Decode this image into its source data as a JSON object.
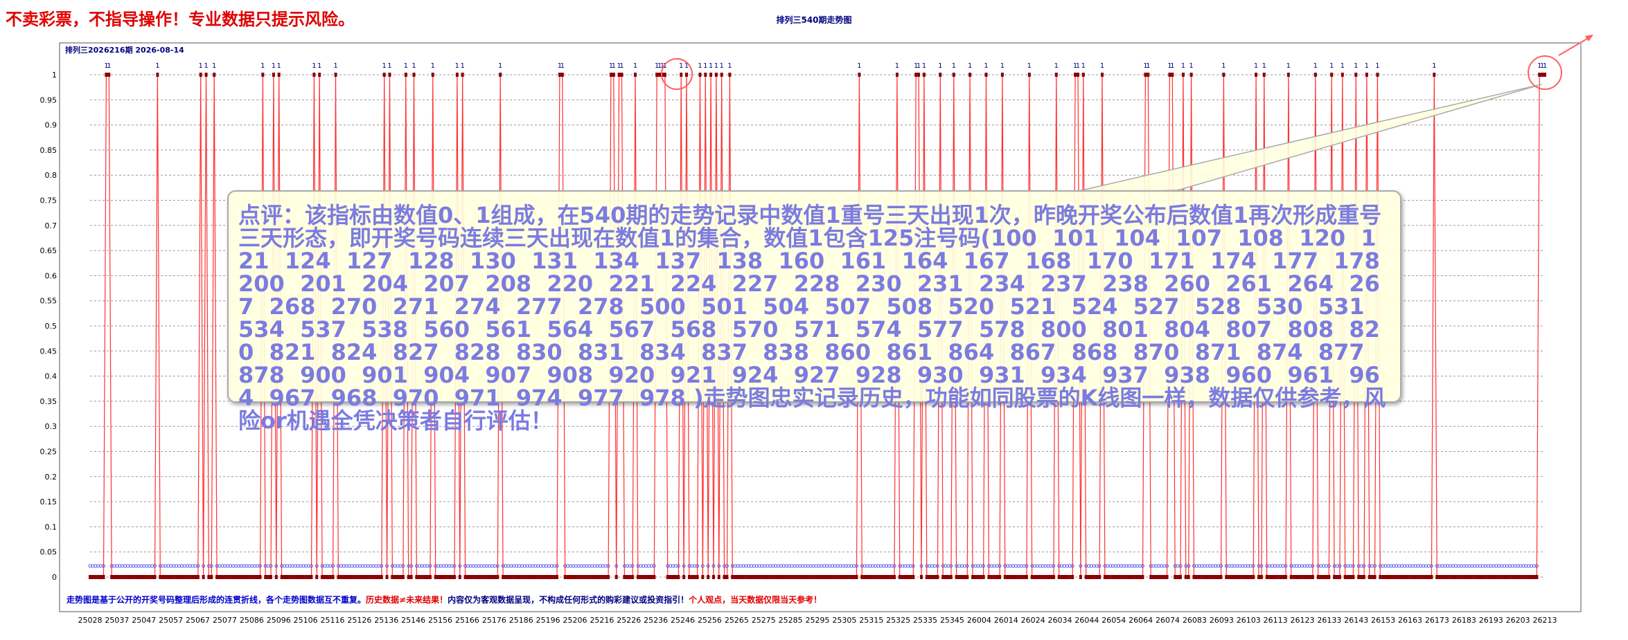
{
  "header": {
    "disclaimer": "不卖彩票，不指导操作！专业数据只提示风险。",
    "title": "排列三540期走势图",
    "period": "排列三2026216期 2026-08-14"
  },
  "footer": {
    "note_blue": "走势图是基于公开的开奖号码整理后形成的连贯折线，各个走势图数据互不重复。",
    "note_red1": "历史数据≠未来结果！",
    "note_black": "内容仅为客观数据呈现，不构成任何形式的购彩建议或投资指引！",
    "note_red2": "个人观点，当天数据仅限当天参考！"
  },
  "callout": {
    "text": "点评：该指标由数值0、1组成，在540期的走势记录中数值1重号三天出现1次，昨晚开奖公布后数值1再次形成重号三天形态，即开奖号码连续三天出现在数值1的集合，数值1包含125注号码(100  101  104  107  108  120  121  124  127  128  130  131  134  137  138  160  161  164  167  168  170  171  174  177  178  200  201  204  207  208  220  221  224  227  228  230  231  234  237  238  260  261  264  267  268  270  271  274  277  278  500  501  504  507  508  520  521  524  527  528  530  531  534  537  538  560  561  564  567  568  570  571  574  577  578  800  801  804  807  808  820  821  824  827  828  830  831  834  837  838  860  861  864  867  868  870  871  874  877  878  900  901  904  907  908  920  921  924  927  928  930  931  934  937  938  960  961  964  967  968  970  971  974  977  978 )走势图忠实记录历史，功能如同股票的K线图一样，数据仅供参考，风险or机遇全凭决策者自行评估！"
  },
  "colors": {
    "line": "#ff3030",
    "marker": "#8b0000",
    "blue_circle": "#3030e0",
    "highlight_circle": "#ff6060",
    "grid": "#999999",
    "label_one": "#000080"
  },
  "chart_data": {
    "type": "line",
    "title": "排列三540期走势图",
    "n_periods": 540,
    "ylim": [
      0,
      1
    ],
    "yticks": [
      "0",
      "0.05",
      "0.1",
      "0.15",
      "0.2",
      "0.25",
      "0.3",
      "0.35",
      "0.4",
      "0.45",
      "0.5",
      "0.55",
      "0.6",
      "0.65",
      "0.7",
      "0.75",
      "0.8",
      "0.85",
      "0.9",
      "0.95",
      "1"
    ],
    "x_ticks": [
      "25028",
      "25037",
      "25047",
      "25057",
      "25067",
      "25077",
      "25086",
      "25096",
      "25106",
      "25116",
      "25126",
      "25136",
      "25146",
      "25156",
      "25166",
      "25176",
      "25186",
      "25196",
      "25206",
      "25216",
      "25226",
      "25236",
      "25246",
      "25256",
      "25265",
      "25275",
      "25285",
      "25295",
      "25305",
      "25315",
      "25325",
      "25335",
      "25345",
      "26004",
      "26014",
      "26024",
      "26034",
      "26044",
      "26054",
      "26064",
      "26074",
      "26083",
      "26093",
      "26103",
      "26113",
      "26123",
      "26133",
      "26143",
      "26153",
      "26163",
      "26173",
      "26183",
      "26193",
      "26203",
      "26213"
    ],
    "ones_indices": [
      15,
      18,
      60,
      100,
      104,
      112,
      155,
      163,
      170,
      199,
      204,
      220,
      263,
      267,
      283,
      289,
      306,
      329,
      333,
      367,
      420,
      423,
      465,
      469,
      472,
      474,
      488,
      507,
      508,
      509,
      511,
      513,
      528,
      529,
      533,
      546,
      550,
      555,
      560,
      565,
      572,
      688,
      720,
      737,
      740,
      745,
      760,
      773,
      787,
      800,
      815,
      840,
      864,
      880,
      883,
      887,
      905,
      942,
      946,
      964,
      967,
      977,
      985,
      1012,
      1043,
      1050,
      1070,
      1095,
      1110,
      1120,
      1130,
      1140,
      1150,
      1200,
      1300
    ],
    "ones_note": "values equal 1 at listed sample positions; all others are 0",
    "highlight_circles": [
      "around periods 25236-25246",
      "latest periods 26214-26216"
    ]
  }
}
